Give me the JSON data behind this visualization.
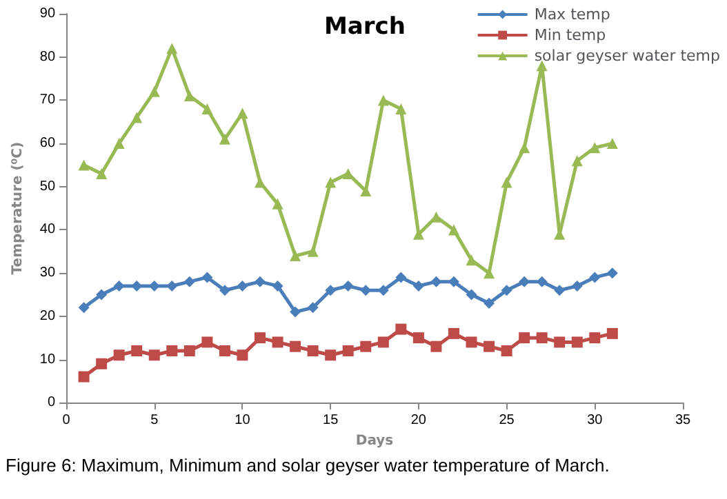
{
  "chart_data": {
    "type": "line",
    "title": "March",
    "xlabel": "Days",
    "ylabel": "Temperature (⁰C)",
    "x": [
      1,
      2,
      3,
      4,
      5,
      6,
      7,
      8,
      9,
      10,
      11,
      12,
      13,
      14,
      15,
      16,
      17,
      18,
      19,
      20,
      21,
      22,
      23,
      24,
      25,
      26,
      27,
      28,
      29,
      30,
      31
    ],
    "series": [
      {
        "name": "Max temp",
        "color": "#4a7ebb",
        "marker": "diamond",
        "values": [
          22,
          25,
          27,
          27,
          27,
          27,
          28,
          29,
          26,
          27,
          28,
          27,
          21,
          22,
          26,
          27,
          26,
          26,
          29,
          27,
          28,
          28,
          25,
          23,
          26,
          28,
          28,
          26,
          27,
          29,
          30
        ]
      },
      {
        "name": "Min temp",
        "color": "#be4b48",
        "marker": "square",
        "values": [
          6,
          9,
          11,
          12,
          11,
          12,
          12,
          14,
          12,
          11,
          15,
          14,
          13,
          12,
          11,
          12,
          13,
          14,
          17,
          15,
          13,
          16,
          14,
          13,
          12,
          15,
          15,
          14,
          14,
          15,
          16
        ]
      },
      {
        "name": "solar geyser water temp",
        "color": "#98b954",
        "marker": "triangle",
        "values": [
          55,
          53,
          60,
          66,
          72,
          82,
          71,
          68,
          61,
          67,
          51,
          46,
          34,
          35,
          51,
          53,
          49,
          70,
          68,
          39,
          43,
          40,
          33,
          30,
          51,
          59,
          78,
          39,
          56,
          59,
          60
        ]
      }
    ],
    "xlim": [
      0,
      35
    ],
    "xticks": [
      0,
      5,
      10,
      15,
      20,
      25,
      30,
      35
    ],
    "ylim": [
      0,
      90
    ],
    "yticks": [
      0,
      10,
      20,
      30,
      40,
      50,
      60,
      70,
      80,
      90
    ],
    "grid": false,
    "legend": "top right",
    "line_style": "solid",
    "annotations": [
      "Figure 6: Maximum, Minimum and solar geyser water temperature of March."
    ]
  }
}
